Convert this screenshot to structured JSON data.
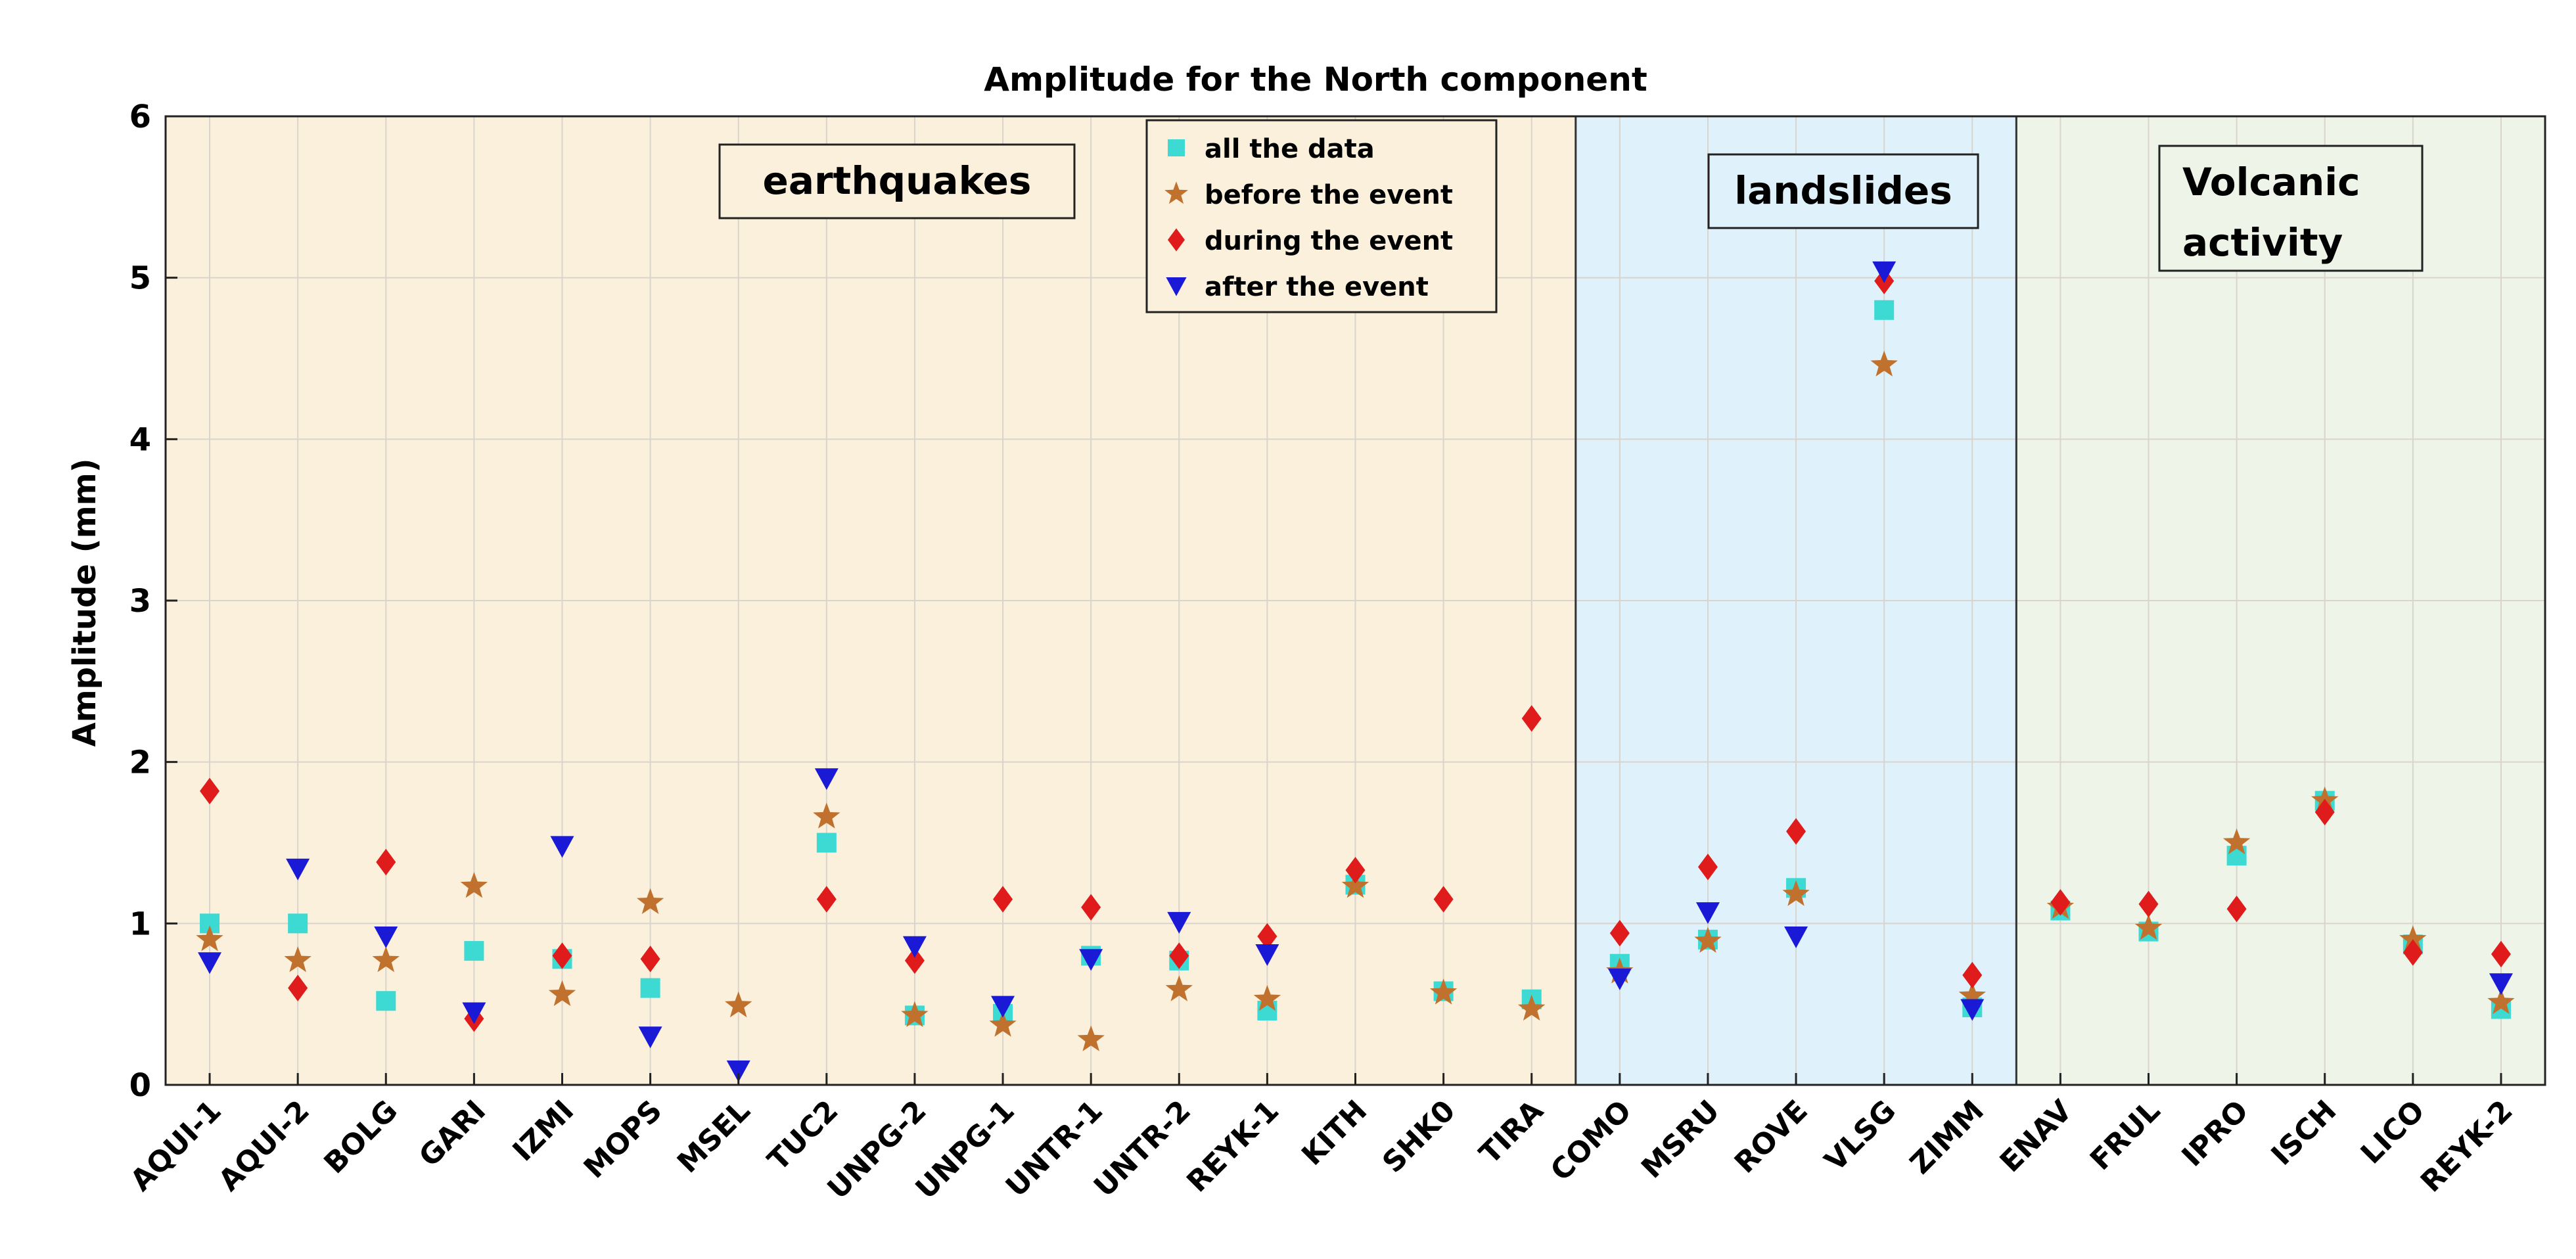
{
  "chart_data": {
    "type": "scatter",
    "title": "Amplitude for the North component",
    "xlabel": "",
    "ylabel": "Amplitude (mm)",
    "ylim": [
      0,
      6
    ],
    "yticks": [
      0,
      1,
      2,
      3,
      4,
      5,
      6
    ],
    "grid": true,
    "legend_position": "top-center",
    "categories": [
      "AQUI-1",
      "AQUI-2",
      "BOLG",
      "GARI",
      "IZMI",
      "MOPS",
      "MSEL",
      "TUC2",
      "UNPG-2",
      "UNPG-1",
      "UNTR-1",
      "UNTR-2",
      "REYK-1",
      "KITH",
      "SHK0",
      "TIRA",
      "COMO",
      "MSRU",
      "ROVE",
      "VLSG",
      "ZIMM",
      "ENAV",
      "FRUL",
      "IPRO",
      "ISCH",
      "LICO",
      "REYK-2"
    ],
    "regions": [
      {
        "name": "earthquakes",
        "label_lines": [
          "earthquakes"
        ],
        "start": "AQUI-1",
        "end": "TIRA",
        "color": "#faf0dc"
      },
      {
        "name": "landslides",
        "label_lines": [
          "landslides"
        ],
        "start": "COMO",
        "end": "ZIMM",
        "color": "#dff1fb"
      },
      {
        "name": "volcanic",
        "label_lines": [
          "Volcanic",
          "activity"
        ],
        "start": "ENAV",
        "end": "REYK-2",
        "color": "#eef4e8"
      }
    ],
    "series": [
      {
        "name": "all the data",
        "marker": "square",
        "color": "#3dd9d3",
        "values": [
          1.0,
          1.0,
          0.52,
          0.83,
          0.78,
          0.6,
          null,
          1.5,
          0.43,
          0.44,
          0.8,
          0.77,
          0.46,
          1.24,
          0.58,
          0.53,
          0.75,
          0.9,
          1.22,
          4.8,
          0.48,
          1.08,
          0.95,
          1.42,
          1.76,
          0.87,
          0.47
        ]
      },
      {
        "name": "before the event",
        "marker": "star",
        "color": "#c0712e",
        "values": [
          0.9,
          0.77,
          0.77,
          1.23,
          0.56,
          1.13,
          0.49,
          1.66,
          0.43,
          0.37,
          0.28,
          0.59,
          0.53,
          1.23,
          0.57,
          0.47,
          0.7,
          0.89,
          1.18,
          4.46,
          0.55,
          1.1,
          0.97,
          1.5,
          1.76,
          0.9,
          0.51
        ]
      },
      {
        "name": "during the event",
        "marker": "diamond",
        "color": "#e01b1b",
        "values": [
          1.82,
          0.6,
          1.38,
          0.41,
          0.8,
          0.78,
          null,
          1.15,
          0.77,
          1.15,
          1.1,
          0.8,
          0.92,
          1.33,
          1.15,
          2.27,
          0.94,
          1.35,
          1.57,
          4.98,
          0.68,
          1.13,
          1.12,
          1.09,
          1.69,
          0.82,
          0.81
        ]
      },
      {
        "name": "after the event",
        "marker": "triangle-down",
        "color": "#1a1ad6",
        "values": [
          0.76,
          1.34,
          0.92,
          0.45,
          1.48,
          0.3,
          0.09,
          1.9,
          0.86,
          0.49,
          0.78,
          1.01,
          0.81,
          null,
          null,
          null,
          0.66,
          1.07,
          0.92,
          5.04,
          0.47,
          null,
          null,
          null,
          null,
          null,
          0.63
        ]
      }
    ]
  }
}
